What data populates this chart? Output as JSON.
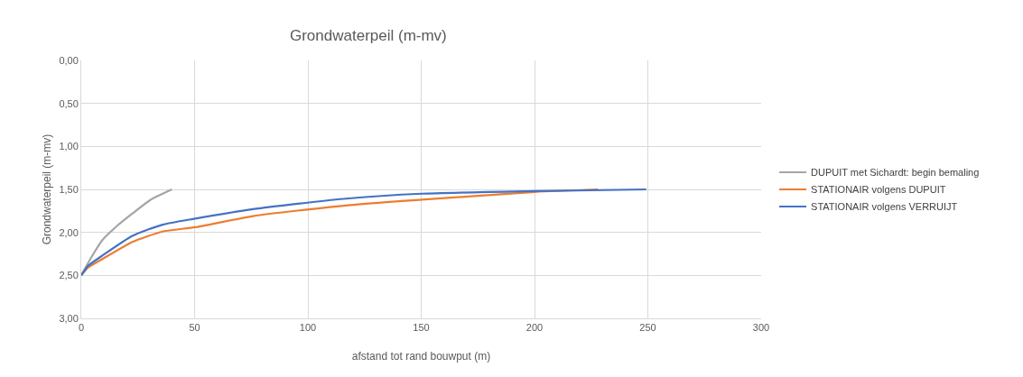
{
  "chart_data": {
    "type": "line",
    "title": "Grondwaterpeil (m-mv)",
    "xlabel": "afstand tot rand bouwput (m)",
    "ylabel": "Grondwaterpeil (m-mv)",
    "xlim": [
      0,
      300
    ],
    "xticks": [
      0,
      50,
      100,
      150,
      200,
      250,
      300
    ],
    "ylim": [
      3,
      0
    ],
    "yticks": [
      {
        "value": 0,
        "label": "0,00"
      },
      {
        "value": 0.5,
        "label": "0,50"
      },
      {
        "value": 1,
        "label": "1,00"
      },
      {
        "value": 1.5,
        "label": "1,50"
      },
      {
        "value": 2,
        "label": "2,00"
      },
      {
        "value": 2.5,
        "label": "2,50"
      },
      {
        "value": 3,
        "label": "3,00"
      }
    ],
    "grid": true,
    "legend": "right",
    "marker": "none",
    "line_style": "solid",
    "series": [
      {
        "name": "DUPUIT met Sichardt: begin bemaling",
        "color": "#a5a5a5",
        "x": [
          0,
          4,
          9.3,
          16,
          22.6,
          30.6,
          40
        ],
        "values": [
          2.5,
          2.31,
          2.09,
          1.92,
          1.78,
          1.62,
          1.5
        ]
      },
      {
        "name": "STATIONAIR volgens DUPUIT",
        "color": "#ed7d31",
        "x": [
          0,
          3,
          9.3,
          22.6,
          35.9,
          50.3,
          75.8,
          115.7,
          150.3,
          200.1,
          228
        ],
        "values": [
          2.5,
          2.41,
          2.31,
          2.11,
          1.99,
          1.94,
          1.81,
          1.69,
          1.62,
          1.53,
          1.5
        ]
      },
      {
        "name": "STATIONAIR volgens VERRUIJT",
        "color": "#4472c4",
        "x": [
          0,
          3,
          9.3,
          22.6,
          35.9,
          50.3,
          75.8,
          115.7,
          150.3,
          200.1,
          249.3
        ],
        "values": [
          2.5,
          2.39,
          2.27,
          2.04,
          1.91,
          1.84,
          1.73,
          1.61,
          1.55,
          1.52,
          1.5
        ]
      }
    ]
  }
}
